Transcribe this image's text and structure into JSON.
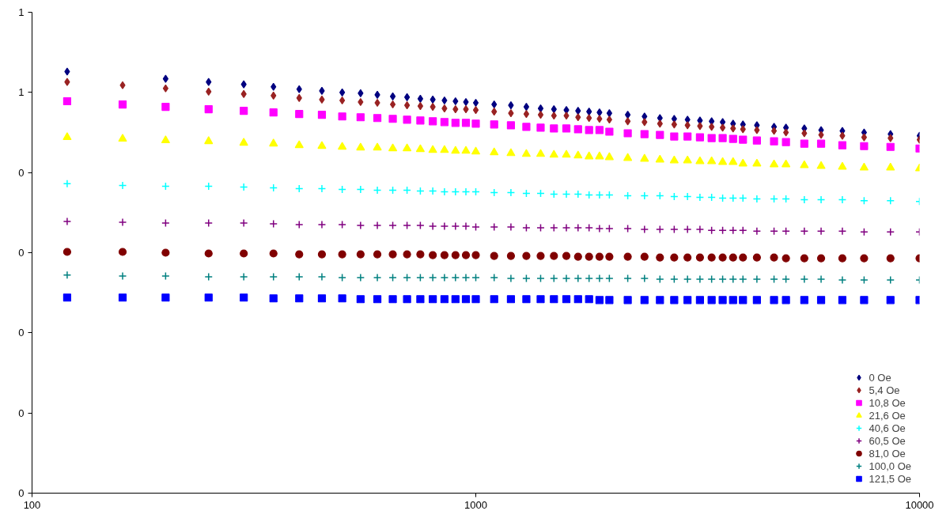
{
  "chart_data": {
    "type": "scatter",
    "log": "x",
    "xlim": [
      100,
      10000
    ],
    "xticks": [
      100,
      1000,
      10000
    ],
    "ylim": [
      0,
      0.6
    ],
    "yticks": [
      {
        "value": 0,
        "label": "0"
      },
      {
        "value": 0.1,
        "label": "0"
      },
      {
        "value": 0.2,
        "label": "0"
      },
      {
        "value": 0.3,
        "label": "0"
      },
      {
        "value": 0.4,
        "label": "0"
      },
      {
        "value": 0.5,
        "label": "1"
      },
      {
        "value": 0.6,
        "label": "1"
      }
    ],
    "grid": false,
    "legend": "bottom right",
    "x": [
      120,
      160,
      200,
      250,
      300,
      350,
      400,
      450,
      500,
      550,
      600,
      650,
      700,
      750,
      800,
      850,
      900,
      950,
      1000,
      1100,
      1200,
      1300,
      1400,
      1500,
      1600,
      1700,
      1800,
      1900,
      2000,
      2200,
      2400,
      2600,
      2800,
      3000,
      3200,
      3400,
      3600,
      3800,
      4000,
      4300,
      4700,
      5000,
      5500,
      6000,
      6700,
      7500,
      8600,
      10000
    ],
    "series": [
      {
        "name": "0 Oe",
        "color": "#000080",
        "marker": "diamond",
        "values": [
          0.526,
          null,
          0.517,
          0.513,
          0.51,
          0.507,
          0.504,
          0.502,
          0.5,
          0.499,
          0.497,
          0.495,
          0.494,
          0.492,
          0.491,
          0.49,
          0.489,
          0.488,
          0.487,
          0.485,
          0.484,
          0.482,
          0.48,
          0.479,
          0.478,
          0.477,
          0.476,
          0.475,
          0.474,
          0.472,
          0.47,
          0.468,
          0.467,
          0.466,
          0.465,
          0.464,
          0.463,
          0.461,
          0.46,
          0.459,
          0.457,
          0.456,
          0.455,
          0.453,
          0.452,
          0.45,
          0.448,
          0.446
        ]
      },
      {
        "name": "5,4 Oe",
        "color": "#992222",
        "marker": "diamond",
        "values": [
          0.513,
          0.509,
          0.505,
          0.501,
          0.498,
          0.496,
          0.493,
          0.491,
          0.49,
          0.488,
          0.487,
          0.485,
          0.484,
          0.483,
          0.482,
          0.48,
          0.479,
          0.479,
          0.478,
          0.476,
          0.474,
          0.473,
          0.472,
          0.471,
          0.471,
          0.469,
          0.468,
          0.467,
          0.466,
          0.464,
          0.463,
          0.461,
          0.46,
          0.459,
          0.458,
          0.457,
          0.456,
          0.455,
          0.454,
          0.453,
          0.452,
          0.45,
          0.449,
          0.447,
          0.446,
          0.444,
          0.443,
          0.441
        ]
      },
      {
        "name": "10,8 Oe",
        "color": "#ff00ff",
        "marker": "square",
        "values": [
          0.489,
          0.485,
          0.482,
          0.479,
          0.477,
          0.475,
          0.473,
          0.472,
          0.47,
          0.469,
          0.468,
          0.467,
          0.466,
          0.465,
          0.464,
          0.463,
          0.462,
          0.462,
          0.461,
          0.46,
          0.459,
          0.457,
          0.456,
          0.455,
          0.455,
          0.454,
          0.453,
          0.453,
          0.451,
          0.449,
          0.448,
          0.447,
          0.445,
          0.445,
          0.444,
          0.443,
          0.443,
          0.442,
          0.441,
          0.44,
          0.439,
          0.438,
          0.436,
          0.436,
          0.434,
          0.433,
          0.432,
          0.43
        ]
      },
      {
        "name": "21,6 Oe",
        "color": "#ffff00",
        "marker": "triangle",
        "values": [
          0.444,
          0.442,
          0.44,
          0.439,
          0.437,
          0.436,
          0.434,
          0.433,
          0.432,
          0.431,
          0.431,
          0.43,
          0.43,
          0.429,
          0.428,
          0.428,
          0.427,
          0.427,
          0.426,
          0.425,
          0.424,
          0.423,
          0.423,
          0.422,
          0.422,
          0.421,
          0.42,
          0.42,
          0.419,
          0.418,
          0.417,
          0.416,
          0.415,
          0.415,
          0.414,
          0.414,
          0.413,
          0.413,
          0.411,
          0.411,
          0.41,
          0.41,
          0.409,
          0.408,
          0.407,
          0.406,
          0.406,
          0.405
        ]
      },
      {
        "name": "40,6 Oe",
        "color": "#00ffff",
        "marker": "cross",
        "values": [
          0.386,
          0.384,
          0.383,
          0.383,
          0.382,
          0.381,
          0.38,
          0.38,
          0.379,
          0.379,
          0.378,
          0.378,
          0.378,
          0.377,
          0.377,
          0.376,
          0.376,
          0.376,
          0.376,
          0.375,
          0.375,
          0.374,
          0.374,
          0.373,
          0.373,
          0.373,
          0.372,
          0.372,
          0.372,
          0.371,
          0.371,
          0.371,
          0.37,
          0.37,
          0.369,
          0.369,
          0.368,
          0.368,
          0.368,
          0.367,
          0.367,
          0.367,
          0.366,
          0.366,
          0.366,
          0.365,
          0.365,
          0.364
        ]
      },
      {
        "name": "60,5 Oe",
        "color": "#800080",
        "marker": "cross",
        "values": [
          0.339,
          0.338,
          0.337,
          0.337,
          0.337,
          0.336,
          0.335,
          0.335,
          0.335,
          0.334,
          0.334,
          0.334,
          0.334,
          0.334,
          0.333,
          0.333,
          0.333,
          0.333,
          0.332,
          0.332,
          0.332,
          0.331,
          0.331,
          0.331,
          0.331,
          0.331,
          0.331,
          0.33,
          0.33,
          0.33,
          0.329,
          0.329,
          0.329,
          0.329,
          0.329,
          0.328,
          0.328,
          0.328,
          0.328,
          0.327,
          0.327,
          0.327,
          0.327,
          0.327,
          0.327,
          0.326,
          0.326,
          0.326
        ]
      },
      {
        "name": "81,0 Oe",
        "color": "#800000",
        "marker": "circle",
        "values": [
          0.301,
          0.301,
          0.3,
          0.299,
          0.299,
          0.299,
          0.298,
          0.298,
          0.298,
          0.298,
          0.298,
          0.298,
          0.298,
          0.298,
          0.297,
          0.297,
          0.297,
          0.297,
          0.297,
          0.296,
          0.296,
          0.296,
          0.296,
          0.296,
          0.296,
          0.295,
          0.295,
          0.295,
          0.295,
          0.295,
          0.295,
          0.294,
          0.294,
          0.294,
          0.294,
          0.294,
          0.294,
          0.294,
          0.294,
          0.294,
          0.294,
          0.293,
          0.293,
          0.293,
          0.293,
          0.293,
          0.293,
          0.293
        ]
      },
      {
        "name": "100,0 Oe",
        "color": "#008080",
        "marker": "cross",
        "values": [
          0.272,
          0.271,
          0.271,
          0.27,
          0.27,
          0.27,
          0.27,
          0.27,
          0.269,
          0.269,
          0.269,
          0.269,
          0.269,
          0.269,
          0.269,
          0.269,
          0.269,
          0.269,
          0.269,
          0.269,
          0.268,
          0.268,
          0.268,
          0.268,
          0.268,
          0.268,
          0.268,
          0.268,
          0.268,
          0.268,
          0.268,
          0.267,
          0.267,
          0.267,
          0.267,
          0.267,
          0.267,
          0.267,
          0.267,
          0.267,
          0.267,
          0.267,
          0.267,
          0.267,
          0.266,
          0.266,
          0.266,
          0.266
        ]
      },
      {
        "name": "121,5 Oe",
        "color": "#0000ff",
        "marker": "square",
        "values": [
          0.244,
          0.244,
          0.244,
          0.244,
          0.244,
          0.243,
          0.243,
          0.243,
          0.243,
          0.242,
          0.242,
          0.242,
          0.242,
          0.242,
          0.242,
          0.242,
          0.242,
          0.242,
          0.242,
          0.242,
          0.242,
          0.242,
          0.242,
          0.242,
          0.242,
          0.242,
          0.242,
          0.241,
          0.241,
          0.241,
          0.241,
          0.241,
          0.241,
          0.241,
          0.241,
          0.241,
          0.241,
          0.241,
          0.241,
          0.241,
          0.241,
          0.241,
          0.241,
          0.241,
          0.241,
          0.241,
          0.241,
          0.241
        ]
      }
    ]
  }
}
